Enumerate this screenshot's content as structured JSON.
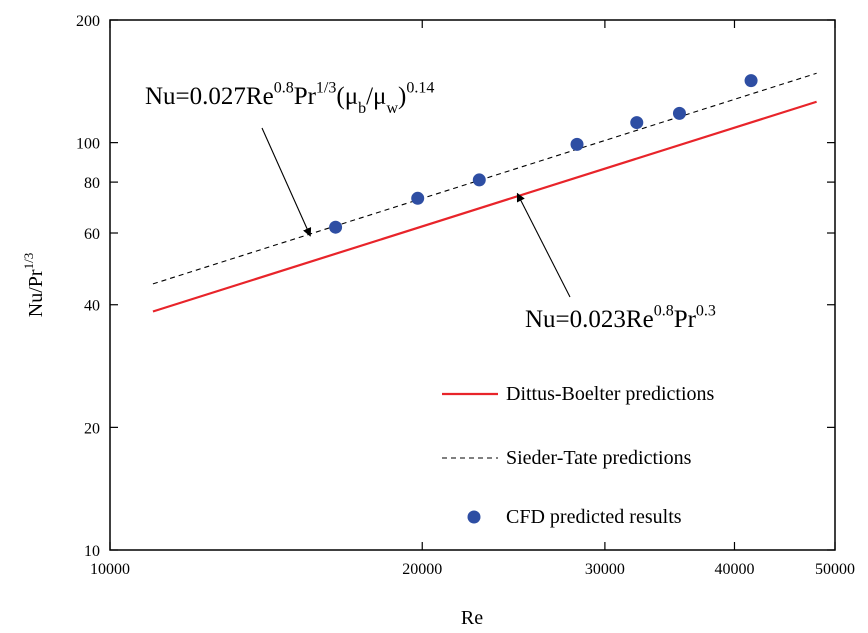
{
  "chart_data": {
    "type": "line",
    "xlabel": "Re",
    "ylabel": {
      "base": "Nu/Pr",
      "sup": "1/3"
    },
    "x_scale": "log",
    "y_scale": "log",
    "xlim": [
      10000,
      50000
    ],
    "ylim": [
      10,
      200
    ],
    "x_ticks": [
      10000,
      20000,
      30000,
      40000,
      50000
    ],
    "x_tick_labels": [
      "10000",
      "20000",
      "30000",
      "40000",
      "50000"
    ],
    "y_ticks": [
      10,
      20,
      40,
      60,
      80,
      100,
      200
    ],
    "y_tick_labels": [
      "10",
      "20",
      "40",
      "60",
      "80",
      "100",
      "200"
    ],
    "grid": false,
    "legend_position": "bottom-right",
    "series": [
      {
        "name": "Dittus-Boelter predictions",
        "style": "solid",
        "color": "#e8242a",
        "x": [
          11000,
          48000
        ],
        "y": [
          38.5,
          126
        ]
      },
      {
        "name": "Sieder-Tate predictions",
        "style": "dashed",
        "color": "#000000",
        "x": [
          11000,
          48000
        ],
        "y": [
          45,
          148
        ]
      },
      {
        "name": "CFD predicted results",
        "style": "markers",
        "color": "#2e4ea3",
        "x": [
          16500,
          19800,
          22700,
          28200,
          32200,
          35400,
          41500
        ],
        "y": [
          62,
          73,
          81,
          99,
          112,
          118,
          142
        ]
      }
    ],
    "annotations": [
      {
        "parts": [
          {
            "t": "Nu=0.027Re"
          },
          {
            "t": "0.8",
            "sup": true
          },
          {
            "t": "Pr"
          },
          {
            "t": "1/3",
            "sup": true
          },
          {
            "t": "(μ"
          },
          {
            "t": "b",
            "sub": true
          },
          {
            "t": "/μ"
          },
          {
            "t": "w",
            "sub": true
          },
          {
            "t": ")"
          },
          {
            "t": "0.14",
            "sup": true
          }
        ],
        "arrow_to": [
          15600,
          59
        ]
      },
      {
        "parts": [
          {
            "t": "Nu=0.023Re"
          },
          {
            "t": "0.8",
            "sup": true
          },
          {
            "t": "Pr"
          },
          {
            "t": "0.3",
            "sup": true
          }
        ],
        "arrow_to": [
          24700,
          75
        ]
      }
    ]
  }
}
